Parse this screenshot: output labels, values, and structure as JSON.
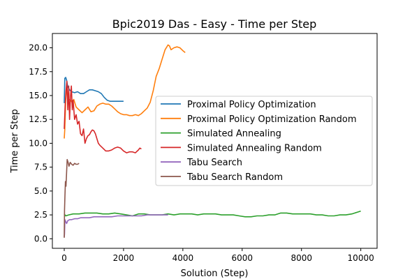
{
  "chart_data": {
    "type": "line",
    "title": "Bpic2019 Das - Easy - Time per Step",
    "xlabel": "Solution (Step)",
    "ylabel": "Time per Step",
    "xlim": [
      -400,
      10550
    ],
    "ylim": [
      -1.0,
      21.5
    ],
    "xticks": [
      0,
      2000,
      4000,
      6000,
      8000,
      10000
    ],
    "yticks": [
      0.0,
      2.5,
      5.0,
      7.5,
      10.0,
      12.5,
      15.0,
      17.5,
      20.0
    ],
    "xtick_labels": [
      "0",
      "2000",
      "4000",
      "6000",
      "8000",
      "10000"
    ],
    "ytick_labels": [
      "0.0",
      "2.5",
      "5.0",
      "7.5",
      "10.0",
      "12.5",
      "15.0",
      "17.5",
      "20.0"
    ],
    "grid": false,
    "legend_position": "center-right",
    "series": [
      {
        "name": "Proximal Policy Optimization",
        "color": "#1f77b4",
        "x": [
          0,
          20,
          50,
          80,
          120,
          180,
          250,
          350,
          450,
          550,
          650,
          750,
          850,
          950,
          1050,
          1150,
          1250,
          1350,
          1450,
          1550,
          1650,
          1750,
          1850,
          1950,
          2000
        ],
        "y": [
          14.2,
          16.8,
          16.9,
          16.6,
          15.9,
          15.6,
          15.4,
          15.3,
          15.4,
          15.2,
          15.2,
          15.4,
          15.6,
          15.6,
          15.5,
          15.4,
          15.2,
          14.8,
          14.5,
          14.4,
          14.4,
          14.4,
          14.4,
          14.4,
          14.4
        ]
      },
      {
        "name": "Proximal Policy Optimization Random",
        "color": "#ff7f0e",
        "x": [
          0,
          20,
          50,
          80,
          110,
          150,
          200,
          260,
          320,
          400,
          500,
          600,
          700,
          800,
          900,
          1000,
          1100,
          1200,
          1300,
          1400,
          1500,
          1600,
          1700,
          1800,
          1900,
          2000,
          2100,
          2200,
          2300,
          2400,
          2500,
          2600,
          2700,
          2800,
          2900,
          3000,
          3100,
          3200,
          3300,
          3400,
          3500,
          3550,
          3600,
          3700,
          3800,
          3900,
          4000,
          4080
        ],
        "y": [
          10.5,
          11.5,
          14.5,
          16.0,
          15.0,
          14.5,
          14.6,
          14.3,
          14.6,
          13.8,
          13.5,
          13.2,
          13.5,
          13.8,
          13.3,
          13.4,
          13.9,
          14.1,
          14.2,
          14.1,
          14.1,
          13.9,
          13.6,
          13.3,
          13.1,
          13.0,
          13.0,
          12.9,
          12.9,
          13.0,
          12.9,
          13.1,
          13.4,
          13.7,
          14.3,
          15.5,
          17.0,
          17.8,
          18.8,
          19.8,
          20.3,
          20.2,
          19.8,
          20.0,
          20.1,
          20.0,
          19.7,
          19.5
        ]
      },
      {
        "name": "Simulated Annealing",
        "color": "#2ca02c",
        "x": [
          0,
          50,
          150,
          300,
          500,
          700,
          900,
          1100,
          1300,
          1500,
          1700,
          1900,
          2100,
          2300,
          2500,
          2700,
          2900,
          3100,
          3300,
          3500,
          3700,
          3900,
          4100,
          4300,
          4500,
          4700,
          4900,
          5100,
          5300,
          5500,
          5700,
          5900,
          6100,
          6300,
          6500,
          6700,
          6900,
          7100,
          7300,
          7500,
          7700,
          7900,
          8100,
          8300,
          8500,
          8700,
          8900,
          9100,
          9300,
          9500,
          9700,
          9900,
          10000
        ],
        "y": [
          2.6,
          2.4,
          2.5,
          2.6,
          2.6,
          2.7,
          2.7,
          2.7,
          2.6,
          2.6,
          2.7,
          2.6,
          2.5,
          2.4,
          2.6,
          2.6,
          2.5,
          2.5,
          2.5,
          2.6,
          2.5,
          2.6,
          2.6,
          2.6,
          2.5,
          2.6,
          2.6,
          2.6,
          2.5,
          2.5,
          2.5,
          2.4,
          2.3,
          2.3,
          2.4,
          2.4,
          2.5,
          2.5,
          2.7,
          2.7,
          2.6,
          2.6,
          2.6,
          2.6,
          2.5,
          2.5,
          2.4,
          2.4,
          2.5,
          2.5,
          2.6,
          2.8,
          2.9
        ]
      },
      {
        "name": "Simulated Annealing Random",
        "color": "#d62728",
        "x": [
          0,
          30,
          60,
          90,
          120,
          150,
          180,
          210,
          240,
          270,
          300,
          350,
          400,
          450,
          500,
          550,
          600,
          650,
          700,
          750,
          800,
          850,
          900,
          950,
          1000,
          1050,
          1100,
          1150,
          1200,
          1300,
          1400,
          1500,
          1600,
          1700,
          1800,
          1900,
          2000,
          2100,
          2200,
          2300,
          2400,
          2500,
          2550,
          2600
        ],
        "y": [
          11.5,
          14.0,
          15.5,
          16.5,
          13.5,
          16.0,
          12.5,
          14.8,
          16.0,
          13.5,
          14.5,
          12.5,
          13.0,
          12.0,
          12.3,
          11.0,
          10.8,
          11.5,
          10.0,
          10.5,
          10.8,
          10.9,
          11.2,
          11.4,
          11.3,
          11.0,
          10.5,
          10.0,
          9.8,
          9.5,
          9.2,
          9.2,
          9.3,
          9.5,
          9.6,
          9.5,
          9.2,
          9.0,
          9.1,
          9.1,
          9.0,
          9.3,
          9.5,
          9.4
        ]
      },
      {
        "name": "Tabu Search",
        "color": "#9467bd",
        "x": [
          0,
          10,
          25,
          50,
          80,
          120,
          180,
          250,
          350,
          450,
          550,
          700,
          850,
          1000,
          1200,
          1400,
          1600,
          1800,
          2000,
          2200,
          2400,
          2600,
          2800,
          3000,
          3200,
          3400,
          3500
        ],
        "y": [
          0.2,
          0.5,
          2.0,
          1.8,
          1.6,
          1.9,
          2.0,
          2.0,
          2.1,
          2.1,
          2.2,
          2.2,
          2.2,
          2.3,
          2.3,
          2.3,
          2.3,
          2.4,
          2.4,
          2.4,
          2.4,
          2.4,
          2.5,
          2.5,
          2.5,
          2.5,
          2.5
        ]
      },
      {
        "name": "Tabu Search Random",
        "color": "#8c564b",
        "x": [
          0,
          10,
          25,
          40,
          60,
          80,
          100,
          130,
          160,
          200,
          250,
          300,
          350,
          400,
          450,
          500
        ],
        "y": [
          0.1,
          3.0,
          4.5,
          6.0,
          5.5,
          7.0,
          8.3,
          8.0,
          7.6,
          8.0,
          7.8,
          7.7,
          7.9,
          7.8,
          7.8,
          7.9
        ]
      }
    ]
  }
}
